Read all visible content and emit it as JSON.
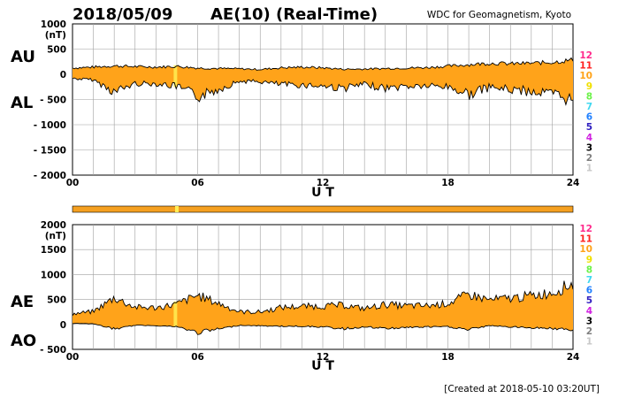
{
  "header": {
    "date": "2018/05/09",
    "title": "AE(10) (Real-Time)",
    "source": "WDC for Geomagnetism, Kyoto"
  },
  "footer": {
    "created": "[Created at 2018-05-10 03:20UT]"
  },
  "colors": {
    "fill": "#ffa31a",
    "outline": "#000000",
    "grid": "#a0a0a0",
    "highlight": "#ffee55",
    "bar": "#f5a020"
  },
  "station_legend": [
    {
      "label": "12",
      "color": "#ff2a8c"
    },
    {
      "label": "11",
      "color": "#ff2020"
    },
    {
      "label": "10",
      "color": "#ffa31a"
    },
    {
      "label": "9",
      "color": "#f0e000"
    },
    {
      "label": "8",
      "color": "#6cf24a"
    },
    {
      "label": "7",
      "color": "#40d8f0"
    },
    {
      "label": "6",
      "color": "#2080ff"
    },
    {
      "label": "5",
      "color": "#3020c0"
    },
    {
      "label": "4",
      "color": "#d020e0"
    },
    {
      "label": "3",
      "color": "#000000"
    },
    {
      "label": "2",
      "color": "#808080"
    },
    {
      "label": "1",
      "color": "#c8c8c8"
    }
  ],
  "chart_data": [
    {
      "type": "area",
      "title": "AU / AL",
      "upper_label": "AU",
      "lower_label": "AL",
      "unit": "(nT)",
      "xlabel": "U T",
      "xlim": [
        0,
        24
      ],
      "ylim": [
        -2000,
        1000
      ],
      "yticks": [
        "1000",
        "500",
        "0",
        "- 500",
        "- 1000",
        "- 1500",
        "- 2000"
      ],
      "ytick_values": [
        1000,
        500,
        0,
        -500,
        -1000,
        -1500,
        -2000
      ],
      "xticks": [
        "00",
        "06",
        "12",
        "18",
        "24"
      ],
      "x": [
        0,
        1,
        2,
        3,
        4,
        5,
        6,
        7,
        8,
        9,
        10,
        11,
        12,
        13,
        14,
        15,
        16,
        17,
        18,
        19,
        20,
        21,
        22,
        23,
        24
      ],
      "series": [
        {
          "name": "AU",
          "values": [
            130,
            150,
            175,
            160,
            150,
            165,
            130,
            120,
            115,
            100,
            135,
            150,
            135,
            105,
            110,
            120,
            130,
            140,
            170,
            200,
            230,
            220,
            230,
            250,
            300
          ]
        },
        {
          "name": "AL",
          "values": [
            -90,
            -120,
            -380,
            -200,
            -200,
            -260,
            -480,
            -320,
            -150,
            -160,
            -220,
            -230,
            -250,
            -300,
            -220,
            -300,
            -260,
            -250,
            -270,
            -430,
            -280,
            -330,
            -370,
            -420,
            -560
          ]
        }
      ]
    },
    {
      "type": "area",
      "title": "AE / AO",
      "upper_label": "AE",
      "lower_label": "AO",
      "unit": "(nT)",
      "xlabel": "U T",
      "xlim": [
        0,
        24
      ],
      "ylim": [
        -500,
        2000
      ],
      "yticks": [
        "2000",
        "1500",
        "1000",
        "500",
        "0",
        "- 500"
      ],
      "ytick_values": [
        2000,
        1500,
        1000,
        500,
        0,
        -500
      ],
      "xticks": [
        "00",
        "06",
        "12",
        "18",
        "24"
      ],
      "x": [
        0,
        1,
        2,
        3,
        4,
        5,
        6,
        7,
        8,
        9,
        10,
        11,
        12,
        13,
        14,
        15,
        16,
        17,
        18,
        19,
        20,
        21,
        22,
        23,
        24
      ],
      "series": [
        {
          "name": "AE",
          "values": [
            220,
            270,
            560,
            360,
            350,
            425,
            610,
            440,
            265,
            260,
            355,
            380,
            385,
            405,
            330,
            420,
            390,
            390,
            440,
            630,
            510,
            550,
            600,
            670,
            860
          ]
        },
        {
          "name": "AO",
          "values": [
            20,
            15,
            -100,
            -20,
            -25,
            -50,
            -175,
            -100,
            -20,
            -30,
            -40,
            -40,
            -55,
            -95,
            -55,
            -90,
            -65,
            -55,
            -50,
            -115,
            -25,
            -55,
            -70,
            -85,
            -130
          ]
        }
      ]
    }
  ]
}
